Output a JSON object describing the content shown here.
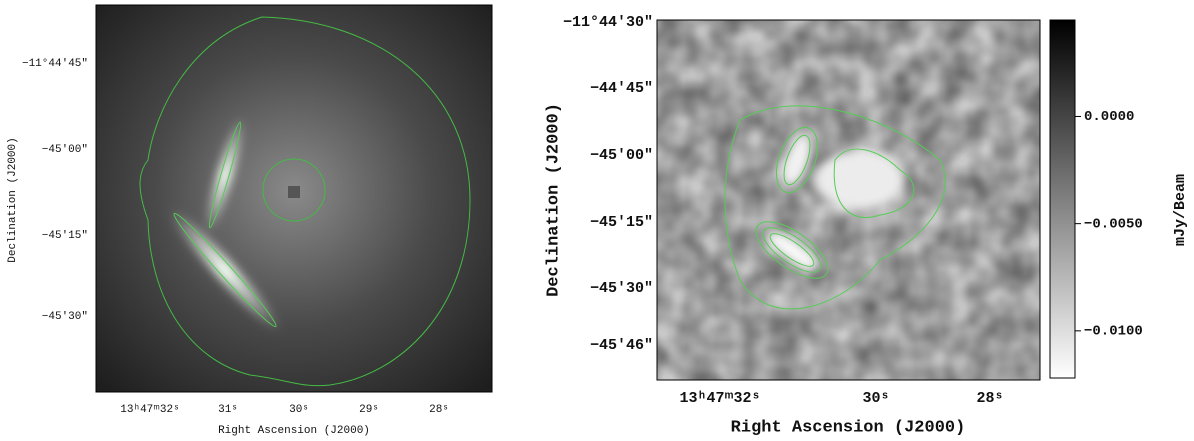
{
  "left_panel": {
    "x_axis": {
      "label": "Right Ascension (J2000)",
      "ticks": [
        "13ʰ47ᵐ32ˢ",
        "31ˢ",
        "30ˢ",
        "29ˢ",
        "28ˢ"
      ]
    },
    "y_axis": {
      "label": "Declination (J2000)",
      "ticks": [
        "−11°44′45″",
        "−45′00″",
        "−45′15″",
        "−45′30″"
      ]
    }
  },
  "right_panel": {
    "x_axis": {
      "label": "Right Ascension (J2000)",
      "ticks": [
        "13ʰ47ᵐ32ˢ",
        "30ˢ",
        "28ˢ"
      ]
    },
    "y_axis": {
      "label": "Declination (J2000)",
      "ticks": [
        "−11°44′30″",
        "−44′45″",
        "−45′00″",
        "−45′15″",
        "−45′30″",
        "−45′46″"
      ]
    },
    "colorbar": {
      "label": "mJy/Beam",
      "range": [
        -0.0122,
        0.0045
      ],
      "ticks": [
        {
          "value": 0,
          "label": "0.0000"
        },
        {
          "value": -0.005,
          "label": "−0.0050"
        },
        {
          "value": -0.01,
          "label": "−0.0100"
        }
      ]
    }
  }
}
